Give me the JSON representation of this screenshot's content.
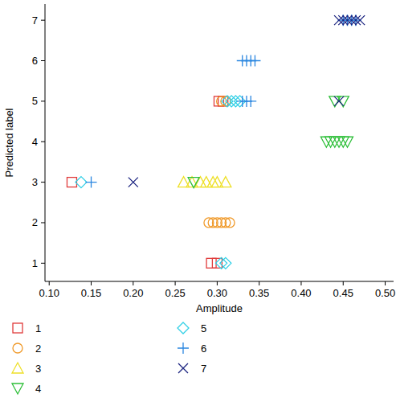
{
  "chart_data": {
    "type": "scatter",
    "x_label": "Amplitude",
    "y_label": "Predicted label",
    "xlim": [
      0.095,
      0.51
    ],
    "ylim": [
      0.55,
      7.4
    ],
    "xticks": [
      {
        "value": 0.1,
        "label": "0.10"
      },
      {
        "value": 0.15,
        "label": "0.15"
      },
      {
        "value": 0.2,
        "label": "0.20"
      },
      {
        "value": 0.25,
        "label": "0.25"
      },
      {
        "value": 0.3,
        "label": "0.30"
      },
      {
        "value": 0.35,
        "label": "0.35"
      },
      {
        "value": 0.4,
        "label": "0.40"
      },
      {
        "value": 0.45,
        "label": "0.45"
      },
      {
        "value": 0.5,
        "label": "0.50"
      }
    ],
    "yticks": [
      1,
      2,
      3,
      4,
      5,
      6,
      7
    ],
    "grid": false,
    "legend": "bottom",
    "series": [
      {
        "name": "1",
        "color": "#e03c3c",
        "marker": "square",
        "x": [
          0.127,
          0.293,
          0.3,
          0.302,
          0.307
        ],
        "values": [
          3,
          1,
          1,
          5,
          5
        ]
      },
      {
        "name": "2",
        "color": "#f09a2a",
        "marker": "circle",
        "x": [
          0.29,
          0.295,
          0.3,
          0.305,
          0.31,
          0.315,
          0.305,
          0.31
        ],
        "values": [
          2,
          2,
          2,
          2,
          2,
          2,
          5,
          5
        ]
      },
      {
        "name": "3",
        "color": "#eee02a",
        "marker": "triangle-up",
        "x": [
          0.26,
          0.27,
          0.28,
          0.287,
          0.295,
          0.3,
          0.31
        ],
        "values": [
          3,
          3,
          3,
          3,
          3,
          3,
          3
        ]
      },
      {
        "name": "4",
        "color": "#2fbf3a",
        "marker": "triangle-down",
        "x": [
          0.272,
          0.43,
          0.435,
          0.44,
          0.445,
          0.45,
          0.455,
          0.44,
          0.45
        ],
        "values": [
          3,
          4,
          4,
          4,
          4,
          4,
          4,
          5,
          5
        ]
      },
      {
        "name": "5",
        "color": "#32d0e6",
        "marker": "diamond",
        "x": [
          0.138,
          0.305,
          0.31,
          0.312,
          0.317,
          0.322,
          0.327
        ],
        "values": [
          3,
          1,
          1,
          5,
          5,
          5,
          5
        ]
      },
      {
        "name": "6",
        "color": "#2a86e0",
        "marker": "plus",
        "x": [
          0.15,
          0.33,
          0.335,
          0.34,
          0.345,
          0.33,
          0.335,
          0.34,
          0.45,
          0.455,
          0.46,
          0.465
        ],
        "values": [
          3,
          6,
          6,
          6,
          6,
          5,
          5,
          5,
          7,
          7,
          7,
          7
        ]
      },
      {
        "name": "7",
        "color": "#1c2480",
        "marker": "x",
        "x": [
          0.2,
          0.445,
          0.445,
          0.45,
          0.455,
          0.46,
          0.465,
          0.47
        ],
        "values": [
          3,
          5,
          7,
          7,
          7,
          7,
          7,
          7
        ]
      }
    ]
  }
}
